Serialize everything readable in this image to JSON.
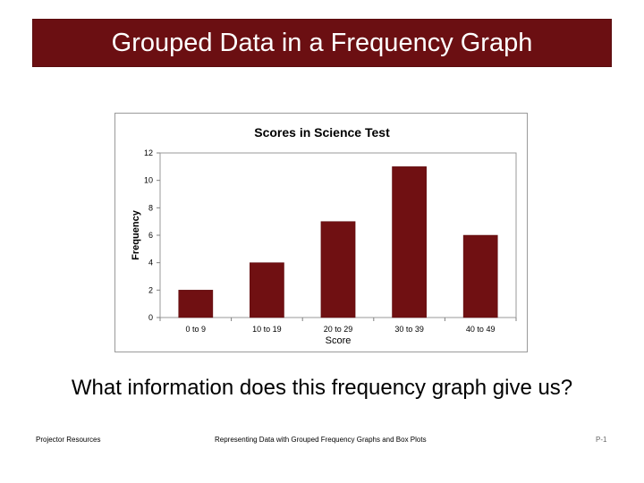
{
  "slide": {
    "title": "Grouped Data in a Frequency Graph",
    "question": "What information does this frequency graph give us?",
    "footer_left": "Projector Resources",
    "footer_center": "Representing Data with Grouped Frequency Graphs and Box Plots",
    "footer_right": "P-1"
  },
  "colors": {
    "title_bar": "#6b0f12",
    "bar_fill": "#701012"
  },
  "chart_data": {
    "type": "bar",
    "title": "Scores in Science Test",
    "xlabel": "Score",
    "ylabel": "Frequency",
    "categories": [
      "0 to 9",
      "10 to 19",
      "20 to 29",
      "30 to 39",
      "40 to 49"
    ],
    "values": [
      2,
      4,
      7,
      11,
      6
    ],
    "ylim": [
      0,
      12
    ],
    "yticks": [
      0,
      2,
      4,
      6,
      8,
      10,
      12
    ],
    "grid": false,
    "legend": "none"
  }
}
